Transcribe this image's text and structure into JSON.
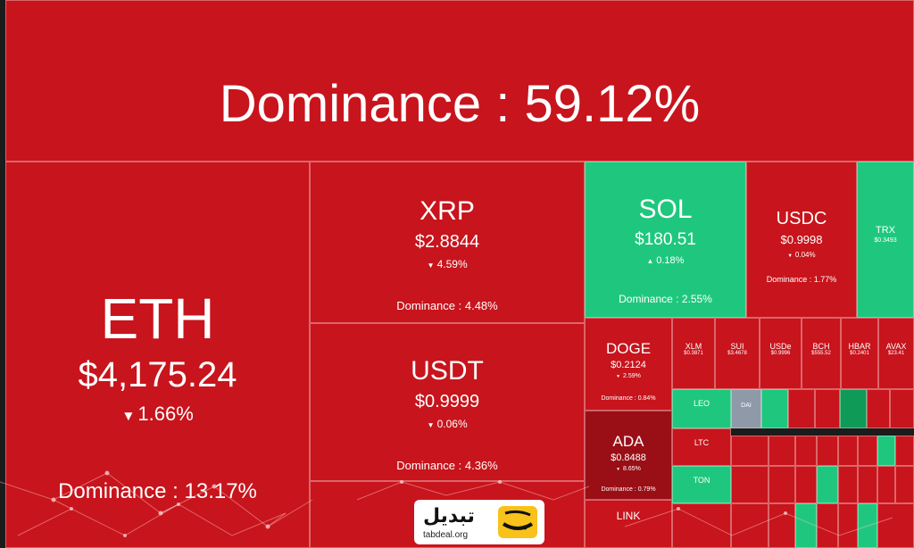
{
  "header": {
    "dominance_text": "Dominance : 59.12%"
  },
  "colors": {
    "down": "#c8141c",
    "up": "#1fc77e"
  },
  "large_tiles": [
    {
      "id": "eth",
      "symbol": "ETH",
      "price": "$4,175.24",
      "arrow": "▼",
      "change": "1.66%",
      "dominance": "Dominance : 13.17%",
      "trend": "down"
    },
    {
      "id": "xrp",
      "symbol": "XRP",
      "price": "$2.8844",
      "arrow": "▼",
      "change": "4.59%",
      "dominance": "Dominance : 4.48%",
      "trend": "down"
    },
    {
      "id": "usdt",
      "symbol": "USDT",
      "price": "$0.9999",
      "arrow": "▼",
      "change": "0.06%",
      "dominance": "Dominance : 4.36%",
      "trend": "down"
    },
    {
      "id": "sol",
      "symbol": "SOL",
      "price": "$180.51",
      "arrow": "▲",
      "change": "0.18%",
      "dominance": "Dominance : 2.55%",
      "trend": "up"
    },
    {
      "id": "usdc",
      "symbol": "USDC",
      "price": "$0.9998",
      "arrow": "▼",
      "change": "0.04%",
      "dominance": "Dominance : 1.77%",
      "trend": "down"
    },
    {
      "id": "trx",
      "symbol": "TRX",
      "price": "$0.3493",
      "arrow": "",
      "change": "",
      "dominance": "",
      "trend": "up"
    },
    {
      "id": "doge",
      "symbol": "DOGE",
      "price": "$0.2124",
      "arrow": "▼",
      "change": "2.59%",
      "dominance": "Dominance : 0.84%",
      "trend": "down"
    },
    {
      "id": "ada",
      "symbol": "ADA",
      "price": "$0.8488",
      "arrow": "▼",
      "change": "8.65%",
      "dominance": "Dominance : 0.79%",
      "trend": "down"
    },
    {
      "id": "link",
      "symbol": "LINK",
      "price": "",
      "arrow": "",
      "change": "",
      "dominance": "",
      "trend": "down"
    }
  ],
  "small_tiles": [
    {
      "symbol": "XLM",
      "price": "$0.3871"
    },
    {
      "symbol": "SUI",
      "price": "$3.4678"
    },
    {
      "symbol": "USDe",
      "price": "$0.9996"
    },
    {
      "symbol": "BCH",
      "price": "$555.52"
    },
    {
      "symbol": "HBAR",
      "price": "$0.2401"
    },
    {
      "symbol": "AVAX",
      "price": "$23.41"
    },
    {
      "symbol": "LEO",
      "price": ""
    },
    {
      "symbol": "DAI",
      "price": ""
    },
    {
      "symbol": "LTC",
      "price": ""
    },
    {
      "symbol": "TON",
      "price": ""
    }
  ],
  "logo": {
    "name": "تبدیل",
    "url": "tabdeal.org"
  }
}
